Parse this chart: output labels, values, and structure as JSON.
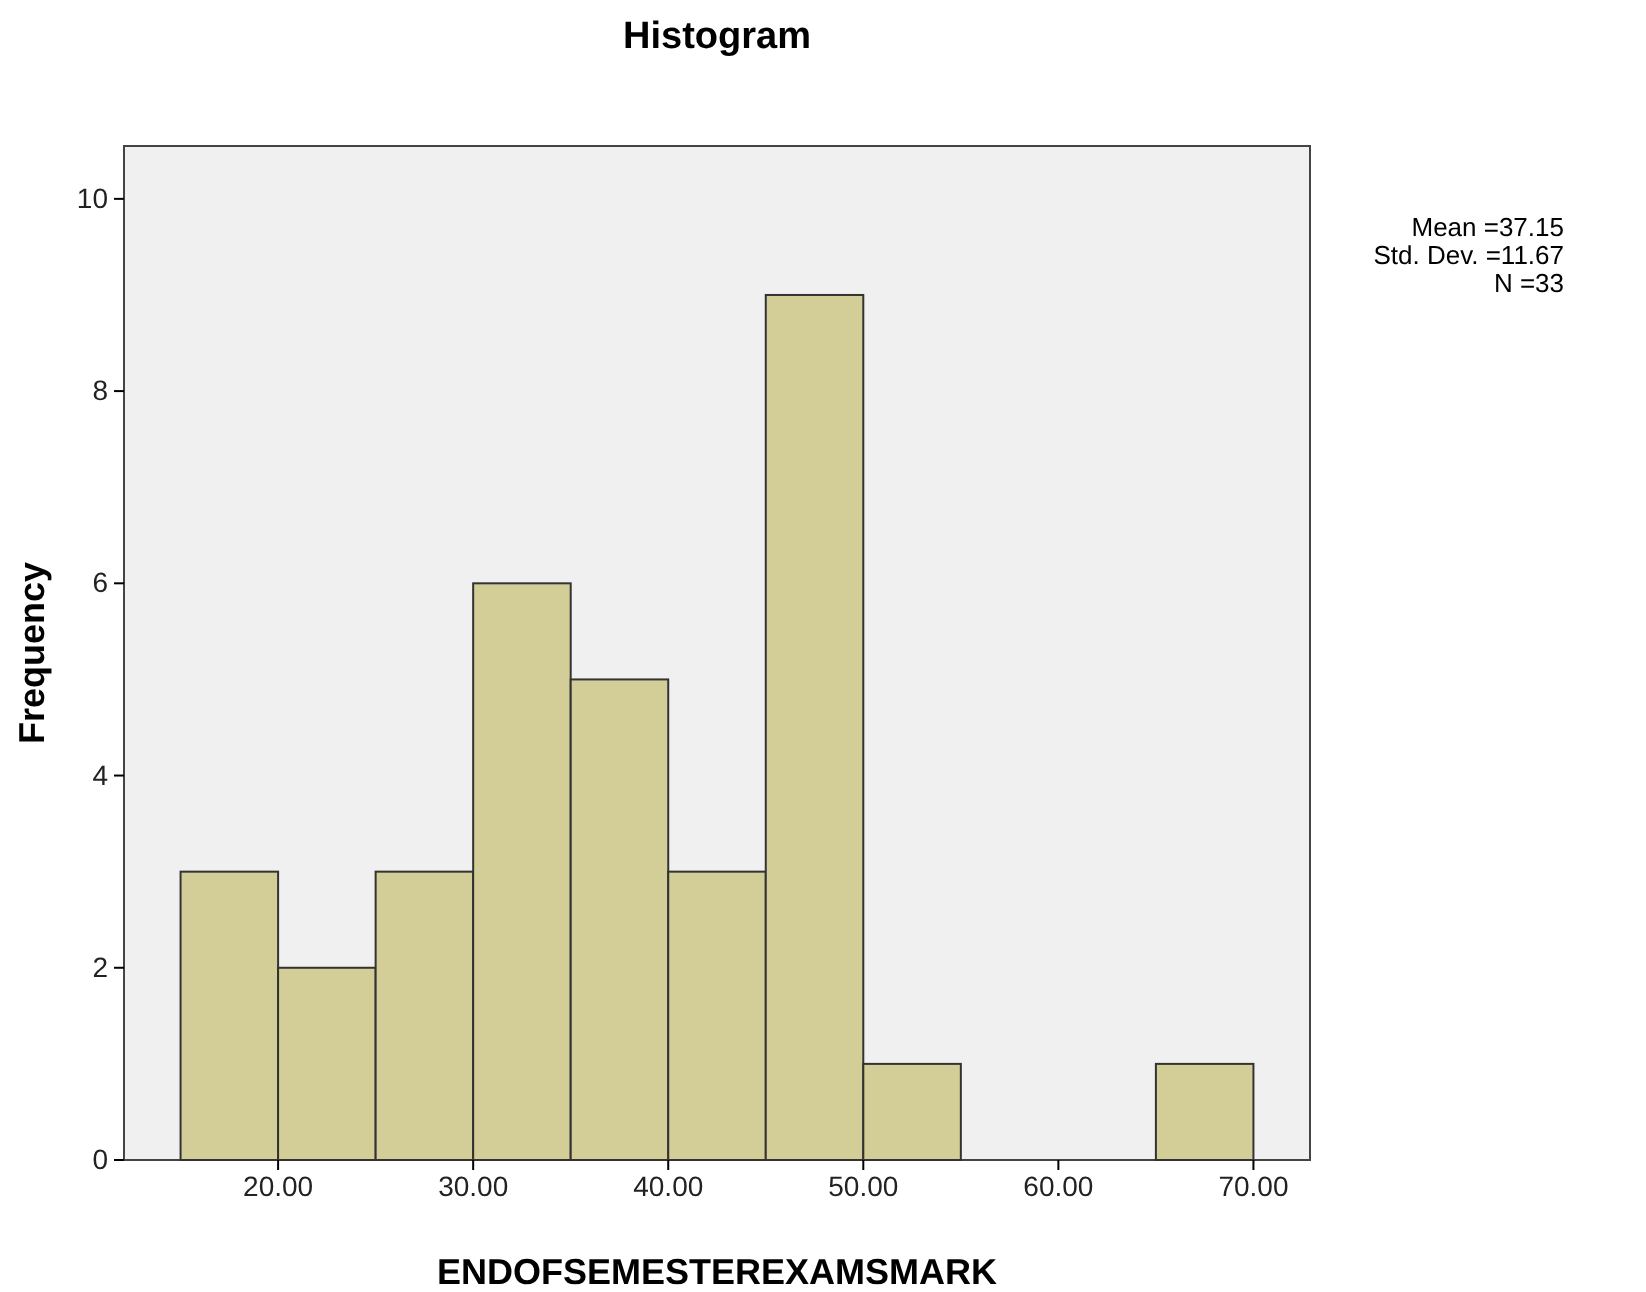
{
  "chart_data": {
    "type": "histogram",
    "title": "Histogram",
    "xlabel": "ENDOFSEMESTEREXAMSMARK",
    "ylabel": "Frequency",
    "bins": [
      15,
      20,
      25,
      30,
      35,
      40,
      45,
      50,
      55,
      60,
      65,
      70
    ],
    "values": [
      3,
      2,
      3,
      6,
      5,
      3,
      9,
      1,
      0,
      0,
      1
    ],
    "color": "#d3ce97",
    "xlim": [
      12.1,
      72.9
    ],
    "xticks": [
      {
        "value": 20,
        "label": "20.00"
      },
      {
        "value": 30,
        "label": "30.00"
      },
      {
        "value": 40,
        "label": "40.00"
      },
      {
        "value": 50,
        "label": "50.00"
      },
      {
        "value": 60,
        "label": "60.00"
      },
      {
        "value": 70,
        "label": "70.00"
      }
    ],
    "ylim": [
      0,
      10.55
    ],
    "yticks": [
      0,
      2,
      4,
      6,
      8,
      10
    ],
    "annotations": [
      "Mean =37.15",
      "Std. Dev. =11.67",
      "N =33"
    ]
  }
}
